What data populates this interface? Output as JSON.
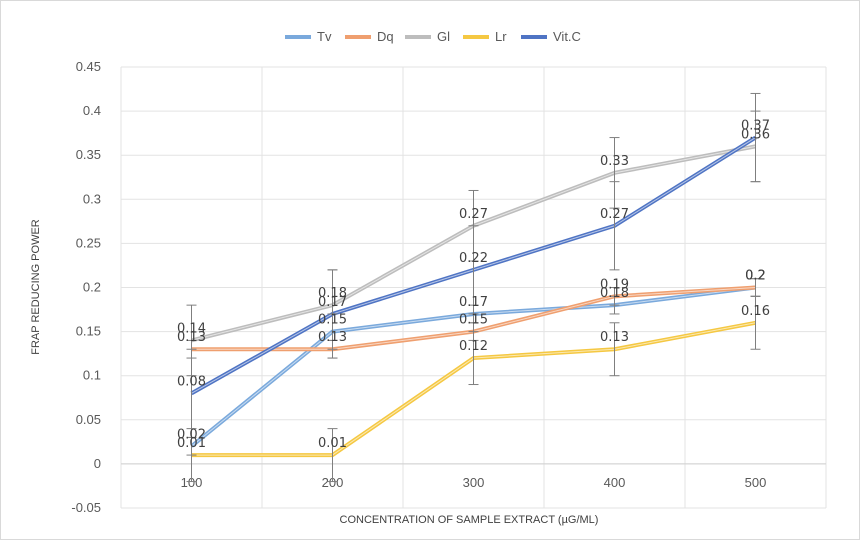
{
  "chart_data": {
    "type": "line",
    "xlabel": "CONCENTRATION OF SAMPLE EXTRACT (µG/ML)",
    "ylabel": "FRAP REDUCING POWER",
    "categories": [
      "100",
      "200",
      "300",
      "400",
      "500"
    ],
    "ylim": [
      -0.05,
      0.45
    ],
    "yticks": [
      "-0.05",
      "0",
      "0.05",
      "0.1",
      "0.15",
      "0.2",
      "0.25",
      "0.3",
      "0.35",
      "0.4",
      "0.45"
    ],
    "grid": true,
    "legend_position": "top",
    "series": [
      {
        "name": "Tv",
        "color": "#7aa9dc",
        "values": [
          0.02,
          0.15,
          0.17,
          0.18,
          0.2
        ],
        "labels": [
          "0.02",
          "0.15",
          "0.17",
          "0.18",
          "0.2"
        ],
        "error": [
          0.01,
          0.02,
          0.01,
          0.01,
          0.01
        ]
      },
      {
        "name": "Dq",
        "color": "#ef9f6f",
        "values": [
          0.13,
          0.13,
          0.15,
          0.19,
          0.2
        ],
        "labels": [
          "0.13",
          "0.13",
          "0.15",
          "0.19",
          "0.2"
        ],
        "error": [
          0.01,
          0.01,
          0.01,
          0.01,
          0.01
        ]
      },
      {
        "name": "Gl",
        "color": "#bdbdbd",
        "values": [
          0.14,
          0.18,
          0.27,
          0.33,
          0.36
        ],
        "labels": [
          "0.14",
          "0.18",
          "0.27",
          "0.33",
          "0.36"
        ],
        "error": [
          0.04,
          0.04,
          0.04,
          0.04,
          0.04
        ]
      },
      {
        "name": "Lr",
        "color": "#f5c842",
        "values": [
          0.01,
          0.01,
          0.12,
          0.13,
          0.16
        ],
        "labels": [
          "0.01",
          "0.01",
          "0.12",
          "0.13",
          "0.16"
        ],
        "error": [
          0.03,
          0.03,
          0.03,
          0.03,
          0.03
        ]
      },
      {
        "name": "Vit.C",
        "color": "#4f74c4",
        "values": [
          0.08,
          0.17,
          0.22,
          0.27,
          0.37
        ],
        "labels": [
          "0.08",
          "0.17",
          "0.22",
          "0.27",
          "0.37"
        ],
        "error": [
          0.05,
          0.05,
          0.05,
          0.05,
          0.05
        ]
      }
    ]
  }
}
